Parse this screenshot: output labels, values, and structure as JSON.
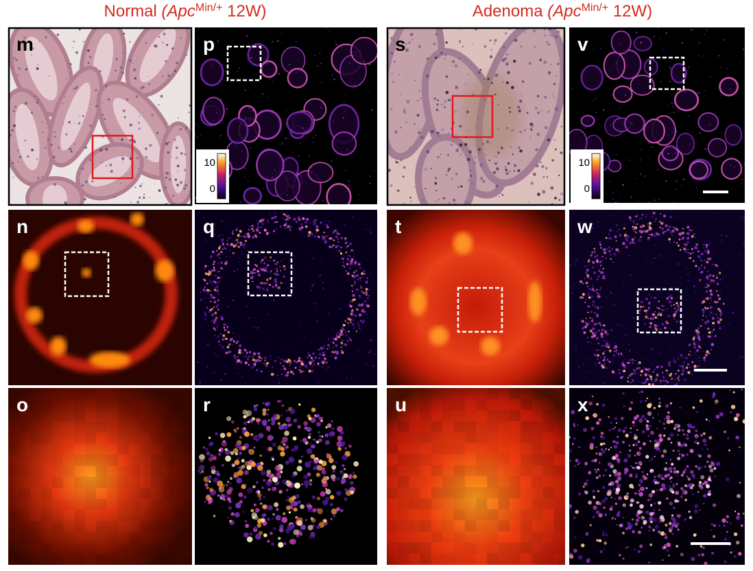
{
  "headers": [
    {
      "lead": "Normal ",
      "italic": "(Apc",
      "sup": "Min/+",
      "tail": " 12W)"
    },
    {
      "lead": "Adenoma ",
      "italic": "(Apc",
      "sup": "Min/+",
      "tail": " 12W)"
    }
  ],
  "panels": [
    {
      "letter": "m"
    },
    {
      "letter": "p"
    },
    {
      "letter": "s"
    },
    {
      "letter": "v"
    },
    {
      "letter": "n"
    },
    {
      "letter": "q"
    },
    {
      "letter": "t"
    },
    {
      "letter": "w"
    },
    {
      "letter": "o"
    },
    {
      "letter": "r"
    },
    {
      "letter": "u"
    },
    {
      "letter": "x"
    }
  ],
  "colorbars": [
    {
      "max": "10",
      "min": "0"
    },
    {
      "max": "10",
      "min": "0"
    }
  ]
}
